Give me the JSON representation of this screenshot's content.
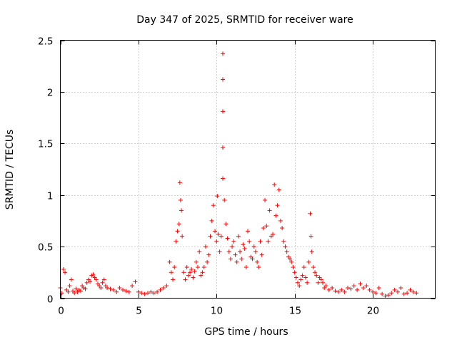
{
  "chart_data": {
    "type": "scatter",
    "title": "Day 347 of 2025, SRMTID for receiver ware",
    "xlabel": "GPS time / hours",
    "ylabel": "SRMTID / TECUs",
    "xlim": [
      0,
      24
    ],
    "ylim": [
      0,
      2.5
    ],
    "x_ticks": [
      0,
      5,
      10,
      15,
      20
    ],
    "y_ticks": [
      0,
      0.5,
      1,
      1.5,
      2,
      2.5
    ],
    "x_tick_labels": [
      "0",
      "5",
      "10",
      "15",
      "20"
    ],
    "y_tick_labels": [
      "0",
      "0.5",
      "1",
      "1.5",
      "2",
      "2.5"
    ],
    "grid": true,
    "marker": "+",
    "series": [
      {
        "name": "SRMTID",
        "color": "#ff0000",
        "x": [
          0.0,
          0.1,
          0.2,
          0.3,
          0.4,
          0.5,
          0.6,
          0.7,
          0.8,
          0.9,
          1.0,
          1.1,
          1.2,
          1.3,
          1.4,
          1.5,
          1.6,
          1.7,
          1.8,
          1.9,
          2.0,
          2.1,
          2.2,
          2.3,
          2.4,
          2.5,
          2.6,
          2.7,
          2.8,
          2.9,
          3.0,
          3.2,
          3.4,
          3.6,
          3.8,
          4.0,
          4.2,
          4.4,
          4.6,
          4.8,
          5.0,
          5.2,
          5.4,
          5.6,
          5.8,
          6.0,
          6.2,
          6.4,
          6.6,
          6.8,
          7.0,
          7.1,
          7.2,
          7.3,
          7.4,
          7.5,
          7.6,
          7.65,
          7.7,
          7.75,
          7.8,
          7.9,
          8.0,
          8.1,
          8.2,
          8.3,
          8.4,
          8.5,
          8.6,
          8.7,
          8.8,
          8.9,
          9.0,
          9.1,
          9.2,
          9.3,
          9.4,
          9.5,
          9.6,
          9.7,
          9.8,
          9.9,
          10.0,
          10.05,
          10.1,
          10.2,
          10.3,
          10.4,
          10.4,
          10.4,
          10.4,
          10.4,
          10.5,
          10.6,
          10.7,
          10.8,
          10.9,
          11.0,
          11.1,
          11.2,
          11.3,
          11.4,
          11.5,
          11.6,
          11.7,
          11.8,
          11.9,
          12.0,
          12.1,
          12.2,
          12.3,
          12.4,
          12.5,
          12.6,
          12.7,
          12.8,
          12.9,
          13.0,
          13.1,
          13.2,
          13.3,
          13.4,
          13.5,
          13.6,
          13.7,
          13.8,
          13.9,
          14.0,
          14.1,
          14.2,
          14.3,
          14.4,
          14.5,
          14.6,
          14.7,
          14.8,
          14.9,
          15.0,
          15.1,
          15.2,
          15.3,
          15.4,
          15.5,
          15.6,
          15.7,
          15.8,
          15.9,
          16.0,
          16.05,
          16.1,
          16.2,
          16.3,
          16.4,
          16.5,
          16.6,
          16.7,
          16.8,
          16.9,
          17.0,
          17.2,
          17.4,
          17.6,
          17.8,
          18.0,
          18.2,
          18.4,
          18.6,
          18.8,
          19.0,
          19.2,
          19.4,
          19.6,
          19.8,
          20.0,
          20.2,
          20.4,
          20.6,
          20.8,
          21.0,
          21.2,
          21.4,
          21.6,
          21.8,
          22.0,
          22.2,
          22.4,
          22.6,
          22.8
        ],
        "y": [
          0.1,
          0.05,
          0.28,
          0.25,
          0.08,
          0.06,
          0.12,
          0.18,
          0.07,
          0.05,
          0.09,
          0.06,
          0.08,
          0.07,
          0.12,
          0.1,
          0.09,
          0.15,
          0.18,
          0.16,
          0.22,
          0.23,
          0.2,
          0.18,
          0.14,
          0.12,
          0.1,
          0.15,
          0.18,
          0.12,
          0.1,
          0.09,
          0.08,
          0.06,
          0.1,
          0.08,
          0.07,
          0.06,
          0.12,
          0.16,
          0.06,
          0.05,
          0.04,
          0.05,
          0.06,
          0.05,
          0.06,
          0.08,
          0.1,
          0.12,
          0.35,
          0.25,
          0.18,
          0.3,
          0.55,
          0.65,
          0.72,
          1.12,
          0.95,
          0.85,
          0.6,
          0.25,
          0.18,
          0.3,
          0.22,
          0.25,
          0.28,
          0.2,
          0.26,
          0.35,
          0.3,
          0.45,
          0.22,
          0.25,
          0.3,
          0.5,
          0.35,
          0.42,
          0.6,
          0.75,
          0.9,
          0.65,
          0.55,
          0.99,
          0.62,
          0.45,
          0.6,
          2.37,
          2.12,
          1.81,
          1.46,
          1.16,
          0.95,
          0.72,
          0.58,
          0.45,
          0.38,
          0.5,
          0.55,
          0.42,
          0.35,
          0.6,
          0.45,
          0.38,
          0.52,
          0.48,
          0.3,
          0.65,
          0.55,
          0.4,
          0.38,
          0.5,
          0.45,
          0.35,
          0.3,
          0.55,
          0.42,
          0.68,
          0.95,
          0.7,
          0.55,
          0.85,
          0.6,
          0.62,
          1.1,
          0.8,
          0.9,
          1.05,
          0.75,
          0.68,
          0.55,
          0.5,
          0.45,
          0.4,
          0.38,
          0.35,
          0.3,
          0.25,
          0.2,
          0.15,
          0.12,
          0.18,
          0.22,
          0.3,
          0.2,
          0.15,
          0.35,
          0.82,
          0.6,
          0.45,
          0.3,
          0.25,
          0.22,
          0.15,
          0.2,
          0.18,
          0.15,
          0.1,
          0.12,
          0.08,
          0.1,
          0.07,
          0.06,
          0.08,
          0.06,
          0.1,
          0.09,
          0.12,
          0.08,
          0.14,
          0.1,
          0.12,
          0.08,
          0.06,
          0.05,
          0.1,
          0.04,
          0.02,
          0.03,
          0.05,
          0.08,
          0.06,
          0.1,
          0.04,
          0.05,
          0.08,
          0.06,
          0.05
        ]
      }
    ]
  }
}
